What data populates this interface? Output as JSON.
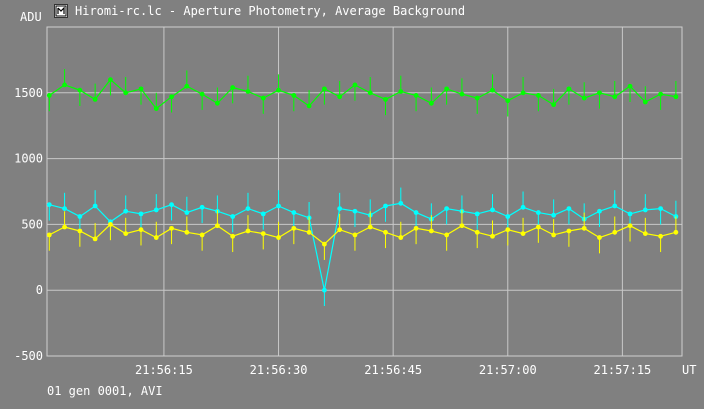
{
  "window": {
    "title": "Hiromi-rc.lc - Aperture Photometry, Average Background",
    "icon": "aperture-app-icon"
  },
  "status": {
    "text": "01 gen 0001, AVI"
  },
  "chart_data": {
    "type": "line",
    "title": "",
    "ylabel": "ADU",
    "xlabel": "UT",
    "ylim": [
      -500,
      2000
    ],
    "y_ticks": [
      "-500",
      "0",
      "500",
      "1000",
      "1500"
    ],
    "y_tick_values": [
      -500,
      0,
      500,
      1000,
      1500
    ],
    "x_ticks": [
      "21:56:15",
      "21:56:30",
      "21:56:45",
      "21:57:00",
      "21:57:15"
    ],
    "x_tick_values": [
      15,
      30,
      45,
      60,
      75
    ],
    "xlim": [
      -0.3,
      82.8
    ],
    "grid": true,
    "series": [
      {
        "color": "#00ff00",
        "x": [
          0,
          2,
          4,
          6,
          8,
          10,
          12,
          14,
          16,
          18,
          20,
          22,
          24,
          26,
          28,
          30,
          32,
          34,
          36,
          38,
          40,
          42,
          44,
          46,
          48,
          50,
          52,
          54,
          56,
          58,
          60,
          62,
          64,
          66,
          68,
          70,
          72,
          74,
          76,
          78,
          80,
          82
        ],
        "values": [
          1480,
          1560,
          1520,
          1450,
          1600,
          1500,
          1530,
          1380,
          1470,
          1550,
          1490,
          1420,
          1540,
          1510,
          1460,
          1520,
          1480,
          1400,
          1530,
          1470,
          1560,
          1500,
          1450,
          1510,
          1480,
          1420,
          1530,
          1490,
          1460,
          1520,
          1440,
          1500,
          1480,
          1410,
          1530,
          1460,
          1500,
          1470,
          1550,
          1430,
          1490,
          1470
        ]
      },
      {
        "color": "#00ffff",
        "x": [
          0,
          2,
          4,
          6,
          8,
          10,
          12,
          14,
          16,
          18,
          20,
          22,
          24,
          26,
          28,
          30,
          32,
          34,
          36,
          38,
          40,
          42,
          44,
          46,
          48,
          50,
          52,
          54,
          56,
          58,
          60,
          62,
          64,
          66,
          68,
          70,
          72,
          74,
          76,
          78,
          80,
          82
        ],
        "values": [
          650,
          620,
          560,
          640,
          520,
          600,
          580,
          610,
          650,
          590,
          630,
          600,
          560,
          620,
          580,
          640,
          590,
          550,
          0,
          620,
          600,
          570,
          640,
          660,
          590,
          540,
          620,
          600,
          580,
          610,
          560,
          630,
          590,
          570,
          620,
          540,
          600,
          640,
          580,
          610,
          620,
          560
        ]
      },
      {
        "color": "#ffff00",
        "x": [
          0,
          2,
          4,
          6,
          8,
          10,
          12,
          14,
          16,
          18,
          20,
          22,
          24,
          26,
          28,
          30,
          32,
          34,
          36,
          38,
          40,
          42,
          44,
          46,
          48,
          50,
          52,
          54,
          56,
          58,
          60,
          62,
          64,
          66,
          68,
          70,
          72,
          74,
          76,
          78,
          80,
          82
        ],
        "values": [
          420,
          480,
          450,
          390,
          500,
          430,
          460,
          400,
          470,
          440,
          420,
          490,
          410,
          450,
          430,
          400,
          470,
          440,
          350,
          460,
          420,
          480,
          440,
          400,
          470,
          450,
          420,
          490,
          440,
          410,
          460,
          430,
          480,
          420,
          450,
          470,
          400,
          440,
          490,
          430,
          410,
          440
        ]
      }
    ]
  }
}
